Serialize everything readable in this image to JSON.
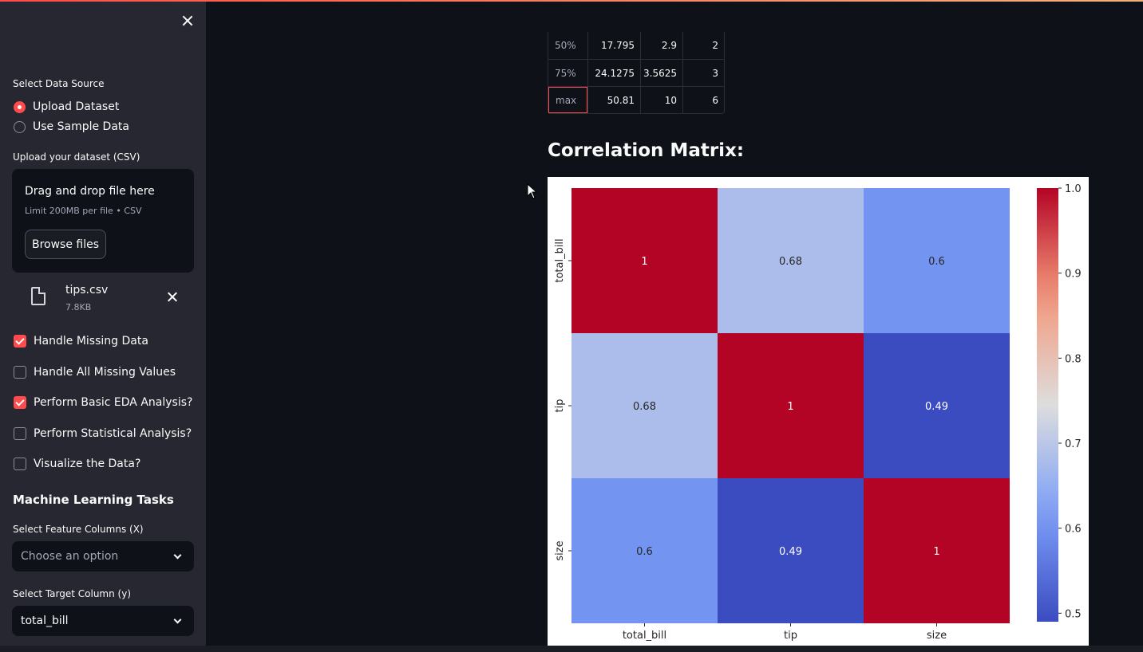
{
  "sidebar": {
    "data_source_label": "Select Data Source",
    "data_source_options": [
      {
        "label": "Upload Dataset",
        "selected": true
      },
      {
        "label": "Use Sample Data",
        "selected": false
      }
    ],
    "upload_label": "Upload your dataset (CSV)",
    "upload_box": {
      "title": "Drag and drop file here",
      "hint": "Limit 200MB per file • CSV",
      "browse_label": "Browse files"
    },
    "file": {
      "name": "tips.csv",
      "size": "7.8KB"
    },
    "options": [
      {
        "label": "Handle Missing Data",
        "checked": true
      },
      {
        "label": "Handle All Missing Values",
        "checked": false
      },
      {
        "label": "Perform Basic EDA Analysis?",
        "checked": true
      },
      {
        "label": "Perform Statistical Analysis?",
        "checked": false
      },
      {
        "label": "Visualize the Data?",
        "checked": false
      }
    ],
    "ml_heading": "Machine Learning Tasks",
    "feature_label": "Select Feature Columns (X)",
    "feature_placeholder": "Choose an option",
    "target_label": "Select Target Column (y)",
    "target_value": "total_bill"
  },
  "stats_table": {
    "rows": [
      {
        "index": "50%",
        "values": [
          "17.795",
          "2.9",
          "2"
        ]
      },
      {
        "index": "75%",
        "values": [
          "24.1275",
          "3.5625",
          "3"
        ]
      },
      {
        "index": "max",
        "values": [
          "50.81",
          "10",
          "6"
        ]
      }
    ]
  },
  "correlation": {
    "heading": "Correlation Matrix:",
    "colors": {
      "high": "#b40426",
      "low": "#3b4cc0",
      "mid": "#dddddd"
    }
  },
  "chart_data": {
    "type": "heatmap",
    "x_labels": [
      "total_bill",
      "tip",
      "size"
    ],
    "y_labels": [
      "total_bill",
      "tip",
      "size"
    ],
    "values": [
      [
        1,
        0.68,
        0.6
      ],
      [
        0.68,
        1,
        0.49
      ],
      [
        0.6,
        0.49,
        1
      ]
    ],
    "value_labels": [
      [
        "1",
        "0.68",
        "0.6"
      ],
      [
        "0.68",
        "1",
        "0.49"
      ],
      [
        "0.6",
        "0.49",
        "1"
      ]
    ],
    "colorbar_ticks": [
      "1.0",
      "0.9",
      "0.8",
      "0.7",
      "0.6",
      "0.5"
    ],
    "colorbar_range": [
      0.49,
      1.0
    ],
    "colormap": "coolwarm"
  }
}
